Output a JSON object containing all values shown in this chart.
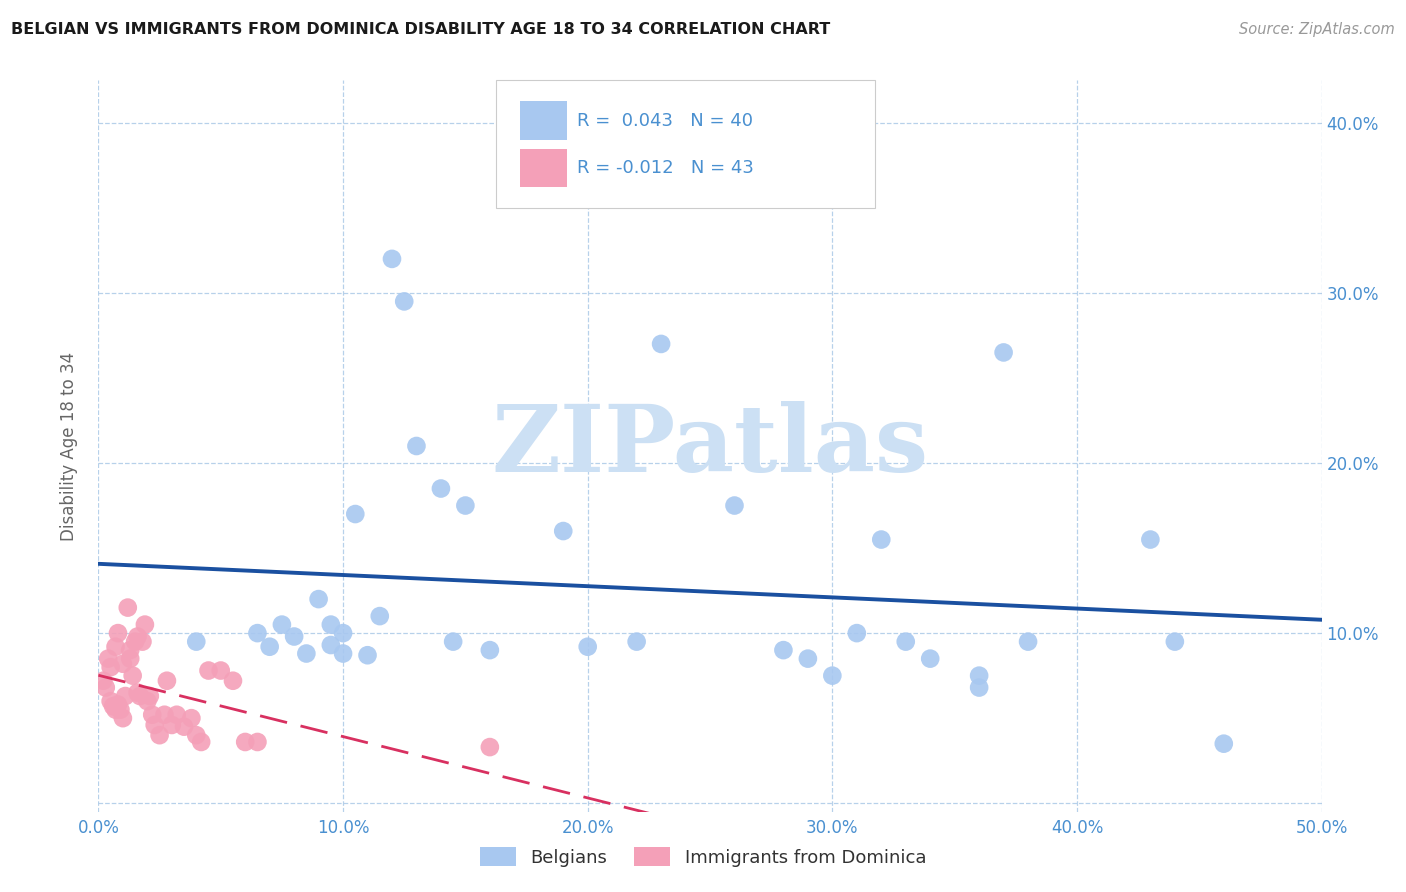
{
  "title": "BELGIAN VS IMMIGRANTS FROM DOMINICA DISABILITY AGE 18 TO 34 CORRELATION CHART",
  "source": "Source: ZipAtlas.com",
  "ylabel": "Disability Age 18 to 34",
  "xlim": [
    0.0,
    0.5
  ],
  "ylim": [
    -0.005,
    0.425
  ],
  "xticks": [
    0.0,
    0.1,
    0.2,
    0.3,
    0.4,
    0.5
  ],
  "yticks": [
    0.0,
    0.1,
    0.2,
    0.3,
    0.4
  ],
  "xticklabels": [
    "0.0%",
    "10.0%",
    "20.0%",
    "30.0%",
    "40.0%",
    "50.0%"
  ],
  "yticklabels_right": [
    "",
    "10.0%",
    "20.0%",
    "30.0%",
    "40.0%"
  ],
  "belgian_R": "0.043",
  "belgian_N": "40",
  "dominica_R": "-0.012",
  "dominica_N": "43",
  "belgian_color": "#a8c8f0",
  "dominica_color": "#f4a0b8",
  "belgian_line_color": "#1a50a0",
  "dominica_line_color": "#d83060",
  "tick_color": "#4a90d0",
  "watermark_color": "#cce0f4",
  "legend_label_belgian": "Belgians",
  "legend_label_dominica": "Immigrants from Dominica",
  "belgian_x": [
    0.04,
    0.065,
    0.07,
    0.075,
    0.08,
    0.085,
    0.09,
    0.095,
    0.095,
    0.1,
    0.1,
    0.105,
    0.11,
    0.115,
    0.12,
    0.125,
    0.13,
    0.14,
    0.145,
    0.15,
    0.16,
    0.19,
    0.2,
    0.22,
    0.23,
    0.26,
    0.28,
    0.29,
    0.3,
    0.31,
    0.32,
    0.33,
    0.34,
    0.36,
    0.36,
    0.37,
    0.38,
    0.43,
    0.44,
    0.46
  ],
  "belgian_y": [
    0.095,
    0.1,
    0.092,
    0.105,
    0.098,
    0.088,
    0.12,
    0.093,
    0.105,
    0.088,
    0.1,
    0.17,
    0.087,
    0.11,
    0.32,
    0.295,
    0.21,
    0.185,
    0.095,
    0.175,
    0.09,
    0.16,
    0.092,
    0.095,
    0.27,
    0.175,
    0.09,
    0.085,
    0.075,
    0.1,
    0.155,
    0.095,
    0.085,
    0.068,
    0.075,
    0.265,
    0.095,
    0.155,
    0.095,
    0.035
  ],
  "dominica_x": [
    0.002,
    0.003,
    0.004,
    0.005,
    0.005,
    0.006,
    0.007,
    0.007,
    0.008,
    0.008,
    0.009,
    0.01,
    0.01,
    0.011,
    0.012,
    0.013,
    0.013,
    0.014,
    0.015,
    0.016,
    0.016,
    0.017,
    0.018,
    0.019,
    0.02,
    0.021,
    0.022,
    0.023,
    0.025,
    0.027,
    0.028,
    0.03,
    0.032,
    0.035,
    0.038,
    0.04,
    0.042,
    0.045,
    0.05,
    0.055,
    0.06,
    0.065,
    0.16
  ],
  "dominica_y": [
    0.072,
    0.068,
    0.085,
    0.08,
    0.06,
    0.057,
    0.055,
    0.092,
    0.058,
    0.1,
    0.055,
    0.05,
    0.082,
    0.063,
    0.115,
    0.085,
    0.09,
    0.075,
    0.095,
    0.098,
    0.065,
    0.063,
    0.095,
    0.105,
    0.06,
    0.063,
    0.052,
    0.046,
    0.04,
    0.052,
    0.072,
    0.046,
    0.052,
    0.045,
    0.05,
    0.04,
    0.036,
    0.078,
    0.078,
    0.072,
    0.036,
    0.036,
    0.033
  ]
}
